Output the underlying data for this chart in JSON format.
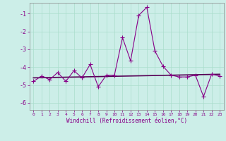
{
  "x": [
    0,
    1,
    2,
    3,
    4,
    5,
    6,
    7,
    8,
    9,
    10,
    11,
    12,
    13,
    14,
    15,
    16,
    17,
    18,
    19,
    20,
    21,
    22,
    23
  ],
  "y": [
    -4.8,
    -4.5,
    -4.7,
    -4.3,
    -4.8,
    -4.2,
    -4.6,
    -3.85,
    -5.1,
    -4.45,
    -4.45,
    -2.35,
    -3.65,
    -1.1,
    -0.65,
    -3.1,
    -3.95,
    -4.45,
    -4.55,
    -4.55,
    -4.45,
    -5.65,
    -4.4,
    -4.5
  ],
  "trend_x": [
    0,
    23
  ],
  "trend_y": [
    -4.6,
    -4.4
  ],
  "line_color": "#880088",
  "trend_color": "#550055",
  "bg_color": "#cceee8",
  "grid_color": "#aaddcc",
  "tick_color": "#880088",
  "xlabel": "Windchill (Refroidissement éolien,°C)",
  "ylim": [
    -6.4,
    -0.4
  ],
  "xlim": [
    -0.5,
    23.5
  ],
  "yticks": [
    -6,
    -5,
    -4,
    -3,
    -2,
    -1
  ],
  "xticks": [
    0,
    1,
    2,
    3,
    4,
    5,
    6,
    7,
    8,
    9,
    10,
    11,
    12,
    13,
    14,
    15,
    16,
    17,
    18,
    19,
    20,
    21,
    22,
    23
  ]
}
